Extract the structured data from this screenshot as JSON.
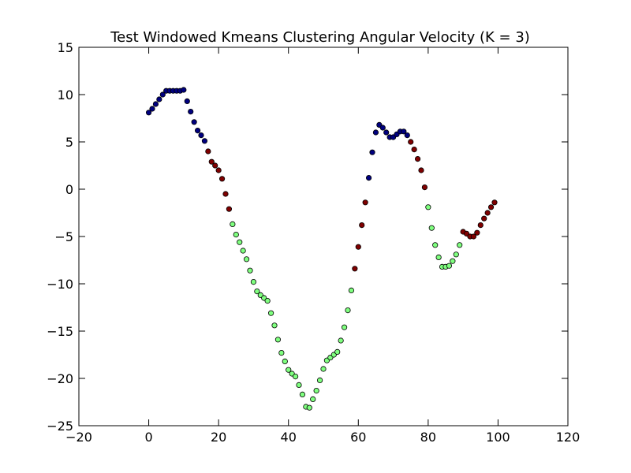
{
  "chart_data": {
    "type": "scatter",
    "title": "Test Windowed Kmeans Clustering Angular Velocity (K = 3)",
    "xlabel": "",
    "ylabel": "",
    "xlim": [
      -20,
      120
    ],
    "ylim": [
      -25,
      15
    ],
    "xticks": [
      "−20",
      "0",
      "20",
      "40",
      "60",
      "80",
      "100",
      "120"
    ],
    "yticks": [
      "15",
      "10",
      "5",
      "0",
      "−5",
      "−10",
      "−15",
      "−20",
      "−25"
    ],
    "grid": false,
    "legend": "none",
    "cluster_colors": {
      "0": "#00007f",
      "1": "#7f0000",
      "2": "#7fff7f"
    },
    "x": [
      0,
      1,
      2,
      3,
      4,
      5,
      6,
      7,
      8,
      9,
      10,
      11,
      12,
      13,
      14,
      15,
      16,
      17,
      18,
      19,
      20,
      21,
      22,
      23,
      24,
      25,
      26,
      27,
      28,
      29,
      30,
      31,
      32,
      33,
      34,
      35,
      36,
      37,
      38,
      39,
      40,
      41,
      42,
      43,
      44,
      45,
      46,
      47,
      48,
      49,
      50,
      51,
      52,
      53,
      54,
      55,
      56,
      57,
      58,
      59,
      60,
      61,
      62,
      63,
      64,
      65,
      66,
      67,
      68,
      69,
      70,
      71,
      72,
      73,
      74,
      75,
      76,
      77,
      78,
      79,
      80,
      81,
      82,
      83,
      84,
      85,
      86,
      87,
      88,
      89,
      90,
      91,
      92,
      93,
      94,
      95,
      96,
      97,
      98,
      99
    ],
    "y": [
      8.1,
      8.5,
      9.0,
      9.5,
      10.0,
      10.4,
      10.4,
      10.4,
      10.4,
      10.4,
      10.5,
      9.3,
      8.2,
      7.1,
      6.2,
      5.7,
      5.1,
      4.0,
      2.9,
      2.5,
      2.0,
      1.1,
      -0.5,
      -2.1,
      -3.7,
      -4.8,
      -5.6,
      -6.5,
      -7.4,
      -8.6,
      -9.8,
      -10.8,
      -11.2,
      -11.5,
      -11.8,
      -13.1,
      -14.4,
      -15.9,
      -17.3,
      -18.2,
      -19.1,
      -19.5,
      -19.8,
      -20.7,
      -21.7,
      -23.0,
      -23.1,
      -22.2,
      -21.3,
      -20.2,
      -19.0,
      -18.1,
      -17.8,
      -17.5,
      -17.2,
      -16.0,
      -14.6,
      -12.8,
      -10.7,
      -8.4,
      -6.1,
      -3.8,
      -1.4,
      1.2,
      3.9,
      6.0,
      6.8,
      6.5,
      6.0,
      5.5,
      5.5,
      5.8,
      6.1,
      6.1,
      5.7,
      5.0,
      4.2,
      3.2,
      2.0,
      0.2,
      -1.9,
      -4.1,
      -5.9,
      -7.2,
      -8.2,
      -8.2,
      -8.1,
      -7.6,
      -6.9,
      -5.9,
      -4.5,
      -4.7,
      -5.0,
      -5.0,
      -4.6,
      -3.8,
      -3.1,
      -2.5,
      -1.9,
      -1.4
    ],
    "cluster": [
      0,
      0,
      0,
      0,
      0,
      0,
      0,
      0,
      0,
      0,
      0,
      0,
      0,
      0,
      0,
      0,
      0,
      1,
      1,
      1,
      1,
      1,
      1,
      1,
      2,
      2,
      2,
      2,
      2,
      2,
      2,
      2,
      2,
      2,
      2,
      2,
      2,
      2,
      2,
      2,
      2,
      2,
      2,
      2,
      2,
      2,
      2,
      2,
      2,
      2,
      2,
      2,
      2,
      2,
      2,
      2,
      2,
      2,
      2,
      1,
      1,
      1,
      1,
      0,
      0,
      0,
      0,
      0,
      0,
      0,
      0,
      0,
      0,
      0,
      0,
      1,
      1,
      1,
      1,
      1,
      2,
      2,
      2,
      2,
      2,
      2,
      2,
      2,
      2,
      2,
      1,
      1,
      1,
      1,
      1,
      1,
      1,
      1,
      1,
      1
    ]
  }
}
